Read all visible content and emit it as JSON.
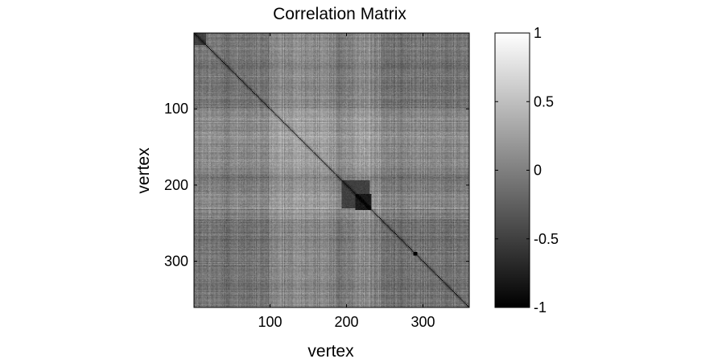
{
  "chart_data": {
    "type": "heatmap",
    "title": "Correlation Matrix",
    "xlabel": "vertex",
    "ylabel": "vertex",
    "n": 360,
    "xlim": [
      0.5,
      360.5
    ],
    "ylim": [
      0.5,
      360.5
    ],
    "y_direction": "reversed",
    "x_ticks": [
      100,
      200,
      300
    ],
    "y_ticks": [
      100,
      200,
      300
    ],
    "x_tick_labels": [
      "100",
      "200",
      "300"
    ],
    "y_tick_labels": [
      "100",
      "200",
      "300"
    ],
    "colormap": "gray",
    "clim": [
      -1,
      1
    ],
    "colorbar": {
      "placement": "right",
      "ticks": [
        -1,
        -0.5,
        0,
        0.5,
        1
      ],
      "tick_labels": [
        "-1",
        "-0.5",
        "0",
        "0.5",
        "1"
      ]
    },
    "diagonal_value": -1,
    "features": [
      {
        "type": "dark_block",
        "center": 222,
        "halfwidth": 10,
        "value": -0.8
      },
      {
        "type": "dark_block",
        "center": 212,
        "halfwidth": 18,
        "value": -0.5
      },
      {
        "type": "dark_point",
        "row": 290,
        "col": 290,
        "value": -1
      },
      {
        "type": "dark_block",
        "center": 8,
        "halfwidth": 8,
        "value": -0.5
      }
    ],
    "light_bands": [
      [
        205,
        245
      ],
      [
        100,
        140
      ],
      [
        140,
        185
      ]
    ],
    "background_mean": -0.1
  }
}
